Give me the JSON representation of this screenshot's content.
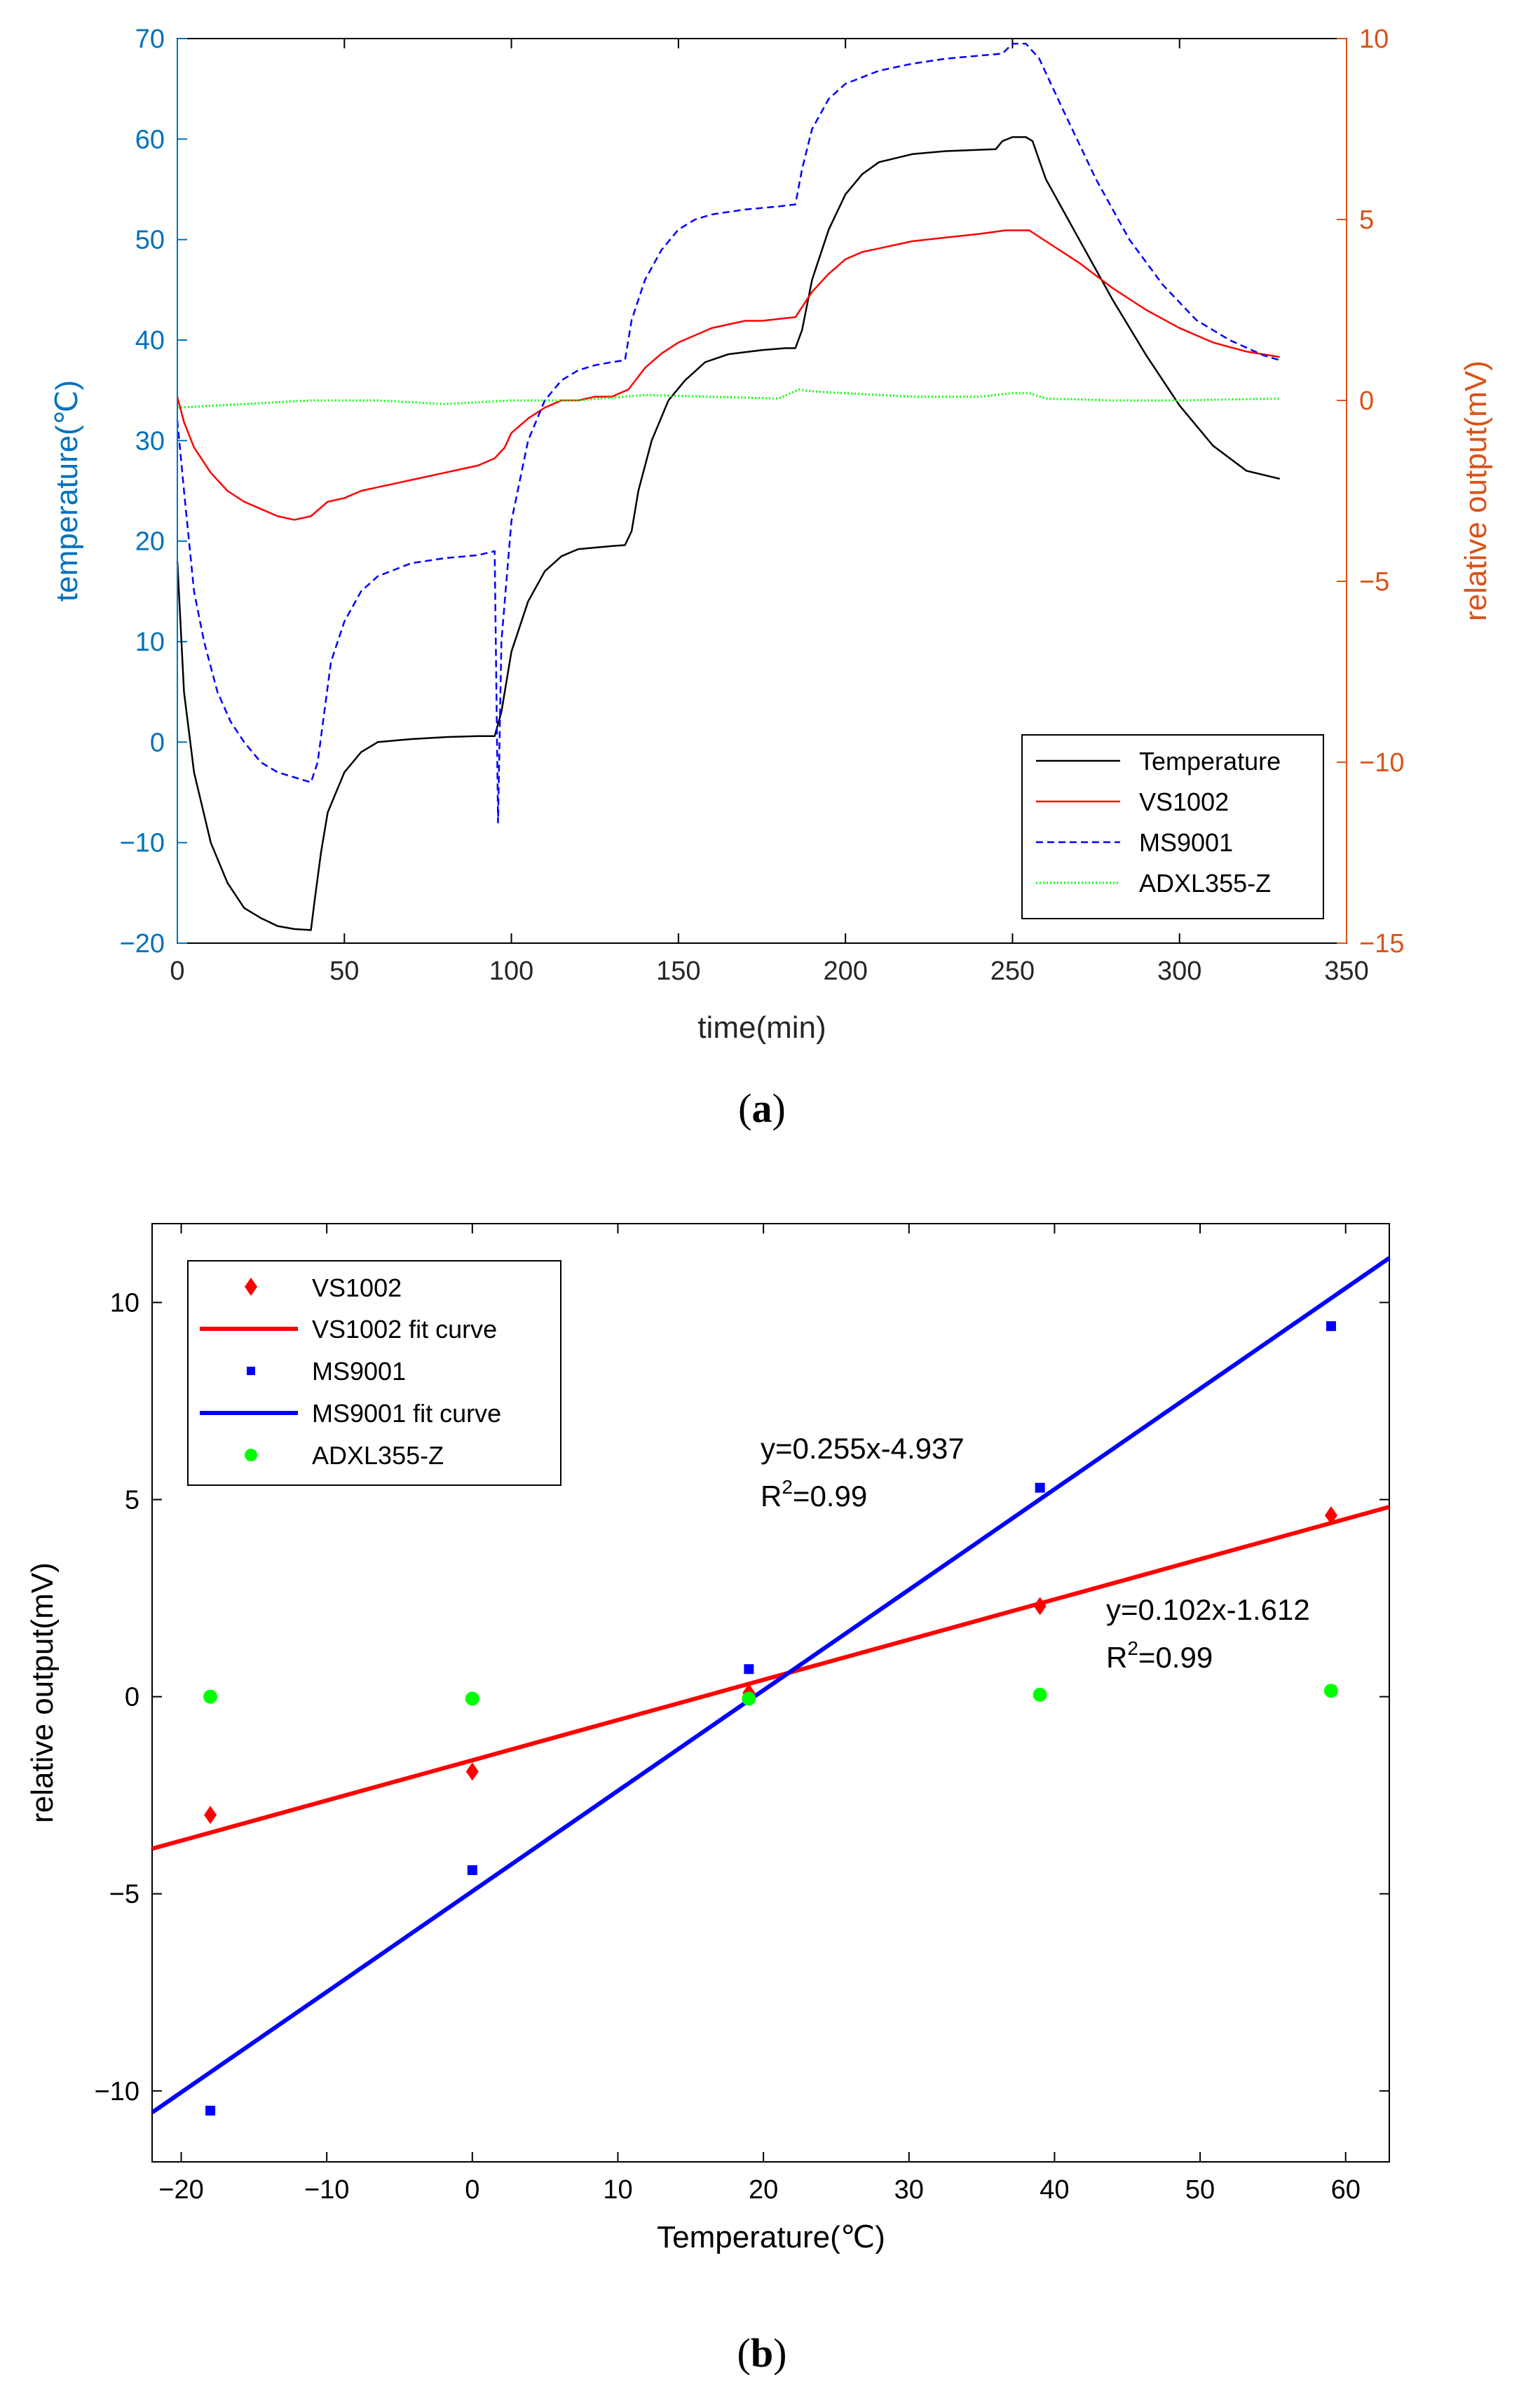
{
  "chart_data": [
    {
      "type": "line",
      "panel_label": "a",
      "xlabel": "time(min)",
      "ylabel_left": "temperature(℃)",
      "ylabel_right": "relative output(mV)",
      "xlim": [
        0,
        350
      ],
      "ylim_left": [
        -20,
        70
      ],
      "ylim_right": [
        -15,
        10
      ],
      "xticks": [
        "0",
        "50",
        "100",
        "150",
        "200",
        "250",
        "300",
        "350"
      ],
      "yticks_left": [
        "70",
        "60",
        "50",
        "40",
        "30",
        "20",
        "10",
        "0",
        "−10",
        "−20"
      ],
      "yticks_right": [
        "10",
        "5",
        "0",
        "−5",
        "−10",
        "−15"
      ],
      "colors": {
        "left_axis": "#0072BD",
        "right_axis": "#D95319",
        "temperature": "#000000",
        "vs1002": "#FF0000",
        "ms9001": "#0000FF",
        "adxl": "#00FF00"
      },
      "legend_position": "bottom-right",
      "series": [
        {
          "name": "Temperature",
          "axis": "left",
          "style": "solid",
          "points": [
            [
              0,
              18
            ],
            [
              2,
              5
            ],
            [
              5,
              -3
            ],
            [
              10,
              -10
            ],
            [
              15,
              -14
            ],
            [
              20,
              -16.5
            ],
            [
              25,
              -17.5
            ],
            [
              30,
              -18.3
            ],
            [
              35,
              -18.6
            ],
            [
              40,
              -18.7
            ],
            [
              41,
              -16
            ],
            [
              43,
              -11
            ],
            [
              45,
              -7
            ],
            [
              50,
              -3
            ],
            [
              55,
              -1
            ],
            [
              60,
              0
            ],
            [
              70,
              0.3
            ],
            [
              80,
              0.5
            ],
            [
              90,
              0.6
            ],
            [
              95,
              0.6
            ],
            [
              97,
              3
            ],
            [
              100,
              9
            ],
            [
              105,
              14
            ],
            [
              110,
              17
            ],
            [
              115,
              18.5
            ],
            [
              120,
              19.2
            ],
            [
              130,
              19.5
            ],
            [
              134,
              19.6
            ],
            [
              136,
              21
            ],
            [
              138,
              25
            ],
            [
              142,
              30
            ],
            [
              147,
              34
            ],
            [
              152,
              36
            ],
            [
              158,
              37.8
            ],
            [
              165,
              38.6
            ],
            [
              175,
              39
            ],
            [
              182,
              39.2
            ],
            [
              185,
              39.2
            ],
            [
              187,
              41
            ],
            [
              190,
              46
            ],
            [
              195,
              51
            ],
            [
              200,
              54.5
            ],
            [
              205,
              56.5
            ],
            [
              210,
              57.7
            ],
            [
              220,
              58.5
            ],
            [
              230,
              58.8
            ],
            [
              245,
              59
            ],
            [
              247,
              59.8
            ],
            [
              250,
              60.2
            ],
            [
              254,
              60.2
            ],
            [
              256,
              59.8
            ],
            [
              260,
              56
            ],
            [
              270,
              50
            ],
            [
              280,
              44
            ],
            [
              290,
              38.5
            ],
            [
              300,
              33.5
            ],
            [
              310,
              29.5
            ],
            [
              320,
              27
            ],
            [
              330,
              26.2
            ]
          ]
        },
        {
          "name": "VS1002",
          "axis": "right",
          "style": "solid",
          "points": [
            [
              0,
              0.1
            ],
            [
              2,
              -0.6
            ],
            [
              5,
              -1.3
            ],
            [
              10,
              -2
            ],
            [
              15,
              -2.5
            ],
            [
              20,
              -2.8
            ],
            [
              25,
              -3
            ],
            [
              30,
              -3.2
            ],
            [
              35,
              -3.3
            ],
            [
              40,
              -3.2
            ],
            [
              45,
              -2.8
            ],
            [
              50,
              -2.7
            ],
            [
              55,
              -2.5
            ],
            [
              60,
              -2.4
            ],
            [
              65,
              -2.3
            ],
            [
              70,
              -2.2
            ],
            [
              75,
              -2.1
            ],
            [
              80,
              -2
            ],
            [
              85,
              -1.9
            ],
            [
              90,
              -1.8
            ],
            [
              95,
              -1.6
            ],
            [
              98,
              -1.3
            ],
            [
              100,
              -0.9
            ],
            [
              105,
              -0.5
            ],
            [
              110,
              -0.2
            ],
            [
              115,
              0
            ],
            [
              120,
              0
            ],
            [
              125,
              0.1
            ],
            [
              130,
              0.1
            ],
            [
              135,
              0.3
            ],
            [
              140,
              0.9
            ],
            [
              145,
              1.3
            ],
            [
              150,
              1.6
            ],
            [
              155,
              1.8
            ],
            [
              160,
              2
            ],
            [
              165,
              2.1
            ],
            [
              170,
              2.2
            ],
            [
              175,
              2.2
            ],
            [
              180,
              2.25
            ],
            [
              185,
              2.3
            ],
            [
              190,
              3
            ],
            [
              195,
              3.5
            ],
            [
              200,
              3.9
            ],
            [
              205,
              4.1
            ],
            [
              210,
              4.2
            ],
            [
              220,
              4.4
            ],
            [
              230,
              4.5
            ],
            [
              240,
              4.6
            ],
            [
              248,
              4.7
            ],
            [
              250,
              4.7
            ],
            [
              255,
              4.7
            ],
            [
              260,
              4.4
            ],
            [
              270,
              3.8
            ],
            [
              280,
              3.1
            ],
            [
              290,
              2.5
            ],
            [
              300,
              2
            ],
            [
              310,
              1.6
            ],
            [
              320,
              1.35
            ],
            [
              330,
              1.2
            ]
          ]
        },
        {
          "name": "MS9001",
          "axis": "left",
          "style": "dashed",
          "points": [
            [
              0,
              32
            ],
            [
              2,
              25
            ],
            [
              5,
              15
            ],
            [
              8,
              10
            ],
            [
              12,
              5
            ],
            [
              16,
              2
            ],
            [
              20,
              0
            ],
            [
              25,
              -2
            ],
            [
              30,
              -3
            ],
            [
              35,
              -3.5
            ],
            [
              40,
              -4
            ],
            [
              42,
              -2
            ],
            [
              44,
              3
            ],
            [
              46,
              8
            ],
            [
              50,
              12
            ],
            [
              55,
              15
            ],
            [
              60,
              16.5
            ],
            [
              70,
              17.8
            ],
            [
              80,
              18.3
            ],
            [
              90,
              18.6
            ],
            [
              95,
              19
            ],
            [
              96,
              -8
            ],
            [
              97,
              10
            ],
            [
              100,
              22
            ],
            [
              105,
              30
            ],
            [
              110,
              34
            ],
            [
              115,
              36
            ],
            [
              120,
              37
            ],
            [
              125,
              37.5
            ],
            [
              130,
              37.8
            ],
            [
              134,
              38
            ],
            [
              136,
              42
            ],
            [
              140,
              46
            ],
            [
              145,
              49
            ],
            [
              150,
              51
            ],
            [
              155,
              52
            ],
            [
              160,
              52.5
            ],
            [
              170,
              53
            ],
            [
              180,
              53.3
            ],
            [
              185,
              53.5
            ],
            [
              187,
              57
            ],
            [
              190,
              61
            ],
            [
              195,
              64
            ],
            [
              200,
              65.5
            ],
            [
              210,
              66.8
            ],
            [
              220,
              67.5
            ],
            [
              230,
              68
            ],
            [
              240,
              68.3
            ],
            [
              247,
              68.5
            ],
            [
              250,
              69.5
            ],
            [
              254,
              69.5
            ],
            [
              258,
              68
            ],
            [
              265,
              63
            ],
            [
              275,
              56
            ],
            [
              285,
              50
            ],
            [
              295,
              45.5
            ],
            [
              305,
              42
            ],
            [
              315,
              40
            ],
            [
              325,
              38.5
            ],
            [
              330,
              38
            ]
          ]
        },
        {
          "name": "ADXL355-Z",
          "axis": "right",
          "style": "dotted",
          "points": [
            [
              0,
              -0.2
            ],
            [
              20,
              -0.1
            ],
            [
              40,
              0
            ],
            [
              60,
              0
            ],
            [
              80,
              -0.1
            ],
            [
              100,
              0
            ],
            [
              120,
              0
            ],
            [
              140,
              0.15
            ],
            [
              160,
              0.1
            ],
            [
              180,
              0.05
            ],
            [
              186,
              0.3
            ],
            [
              190,
              0.25
            ],
            [
              200,
              0.2
            ],
            [
              220,
              0.1
            ],
            [
              240,
              0.1
            ],
            [
              250,
              0.2
            ],
            [
              255,
              0.2
            ],
            [
              260,
              0.05
            ],
            [
              280,
              0
            ],
            [
              300,
              0
            ],
            [
              330,
              0.05
            ]
          ]
        }
      ]
    },
    {
      "type": "scatter",
      "panel_label": "b",
      "xlabel": "Temperature(℃)",
      "ylabel": "relative output(mV)",
      "xlim": [
        -22,
        63
      ],
      "ylim": [
        -11.8,
        12
      ],
      "xticks": [
        "−20",
        "−10",
        "0",
        "10",
        "20",
        "30",
        "40",
        "50",
        "60"
      ],
      "yticks": [
        "10",
        "5",
        "0",
        "−5",
        "−10"
      ],
      "legend_position": "top-left",
      "series": [
        {
          "name": "VS1002",
          "kind": "points",
          "marker": "diamond",
          "color": "#FF0000",
          "points": [
            [
              -18,
              -3.0
            ],
            [
              0,
              -1.9
            ],
            [
              19,
              0.1
            ],
            [
              39,
              2.3
            ],
            [
              59,
              4.6
            ]
          ]
        },
        {
          "name": "VS1002 fit curve",
          "kind": "line",
          "color": "#FF0000",
          "slope": 0.102,
          "intercept": -1.612
        },
        {
          "name": "MS9001",
          "kind": "points",
          "marker": "square",
          "color": "#0000FF",
          "points": [
            [
              -18,
              -10.5
            ],
            [
              0,
              -4.4
            ],
            [
              19,
              0.7
            ],
            [
              39,
              5.3
            ],
            [
              59,
              9.4
            ]
          ]
        },
        {
          "name": "MS9001 fit curve",
          "kind": "line",
          "color": "#0000FF",
          "slope": 0.255,
          "intercept": -4.937
        },
        {
          "name": "ADXL355-Z",
          "kind": "points",
          "marker": "circle",
          "color": "#00FF00",
          "points": [
            [
              -18,
              0.0
            ],
            [
              0,
              -0.05
            ],
            [
              19,
              -0.05
            ],
            [
              39,
              0.05
            ],
            [
              59,
              0.15
            ]
          ]
        }
      ],
      "annotations": [
        {
          "text": "y=0.255x-4.937",
          "r2_prefix": "R",
          "r2_sup": "2",
          "r2_suffix": "=0.99"
        },
        {
          "text": "y=0.102x-1.612",
          "r2_prefix": "R",
          "r2_sup": "2",
          "r2_suffix": "=0.99"
        }
      ]
    }
  ]
}
